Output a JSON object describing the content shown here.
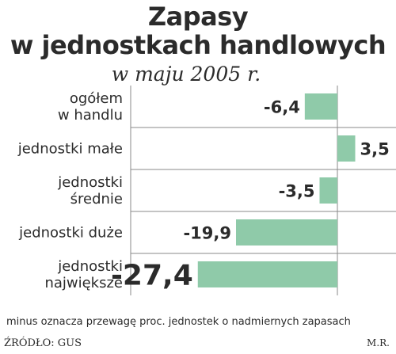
{
  "header": {
    "title_line1": "Zapasy",
    "title_line2": "w jednostkach handlowych",
    "subtitle": "w maju 2005 r."
  },
  "footer": {
    "note": "minus oznacza przewagę proc. jednostek o nadmiernych zapasach",
    "source": "ŹRÓDŁO: GUS",
    "author": "M.R."
  },
  "colors": {
    "bar": "#8fcaa9",
    "highlight_value": "#d6204a",
    "grid": "#8a8a8a"
  },
  "chart_data": {
    "type": "bar",
    "orientation": "horizontal",
    "categories": [
      [
        "ogółem",
        "w handlu"
      ],
      [
        "jednostki małe"
      ],
      [
        "jednostki",
        "średnie"
      ],
      [
        "jednostki duże"
      ],
      [
        "jednostki",
        "największe"
      ]
    ],
    "values": [
      -6.4,
      3.5,
      -3.5,
      -19.9,
      -27.4
    ],
    "value_labels": [
      "-6,4",
      "3,5",
      "-3,5",
      "-19,9",
      "-27,4"
    ],
    "highlight_index": 4,
    "xlim": [
      -27.4,
      7
    ],
    "grid": true
  }
}
